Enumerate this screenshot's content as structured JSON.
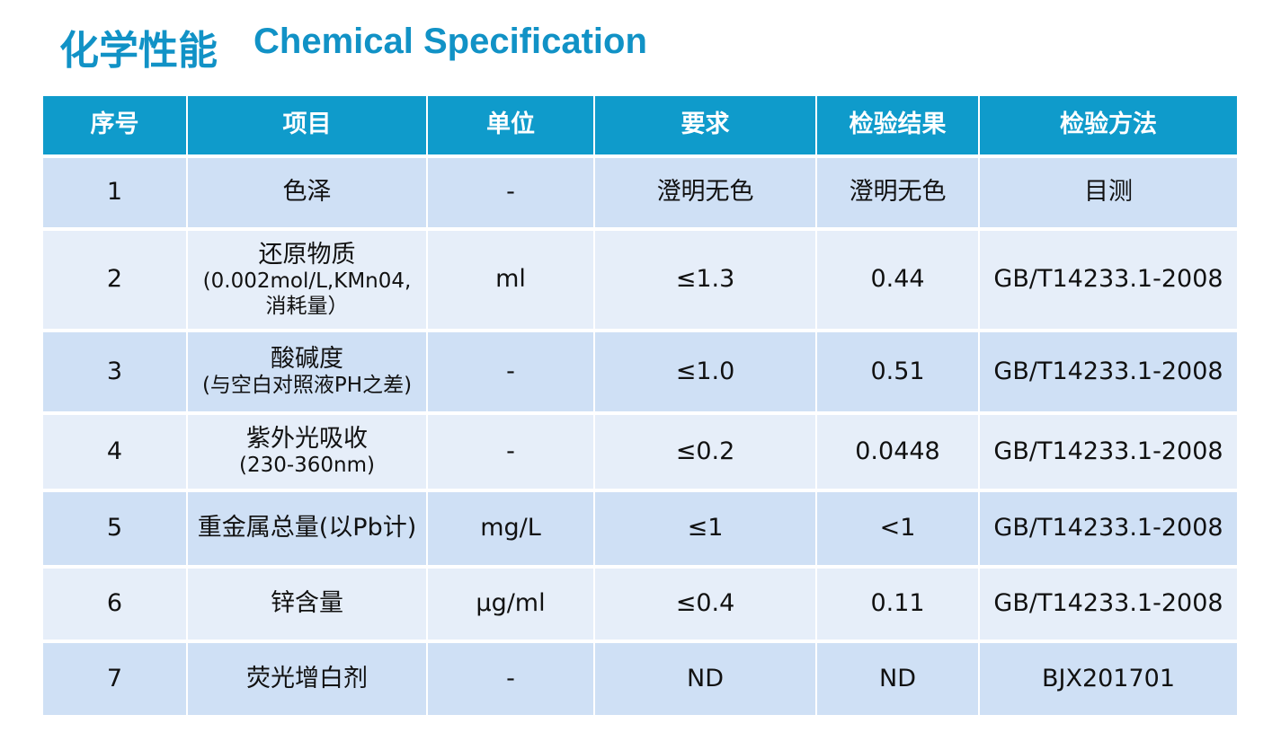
{
  "header": {
    "title_cn": "化学性能",
    "title_en": "Chemical Specification"
  },
  "table": {
    "columns": [
      "序号",
      "项目",
      "单位",
      "要求",
      "检验结果",
      "检验方法"
    ],
    "rows": [
      [
        "1",
        [
          "色泽"
        ],
        "-",
        "澄明无色",
        "澄明无色",
        "目测"
      ],
      [
        "2",
        [
          "还原物质",
          "(0.002mol/L,KMn04,",
          "消耗量）"
        ],
        "ml",
        "≤1.3",
        "0.44",
        "GB/T14233.1-2008"
      ],
      [
        "3",
        [
          "酸碱度",
          "(与空白对照液PH之差)"
        ],
        "-",
        "≤1.0",
        "0.51",
        "GB/T14233.1-2008"
      ],
      [
        "4",
        [
          "紫外光吸收",
          "(230-360nm)"
        ],
        "-",
        "≤0.2",
        "0.0448",
        "GB/T14233.1-2008"
      ],
      [
        "5",
        [
          "重金属总量(以Pb计)"
        ],
        "mg/L",
        "≤1",
        "<1",
        "GB/T14233.1-2008"
      ],
      [
        "6",
        [
          "锌含量"
        ],
        "μg/ml",
        "≤0.4",
        "0.11",
        "GB/T14233.1-2008"
      ],
      [
        "7",
        [
          "荧光增白剂"
        ],
        "-",
        "ND",
        "ND",
        "BJX201701"
      ]
    ]
  }
}
